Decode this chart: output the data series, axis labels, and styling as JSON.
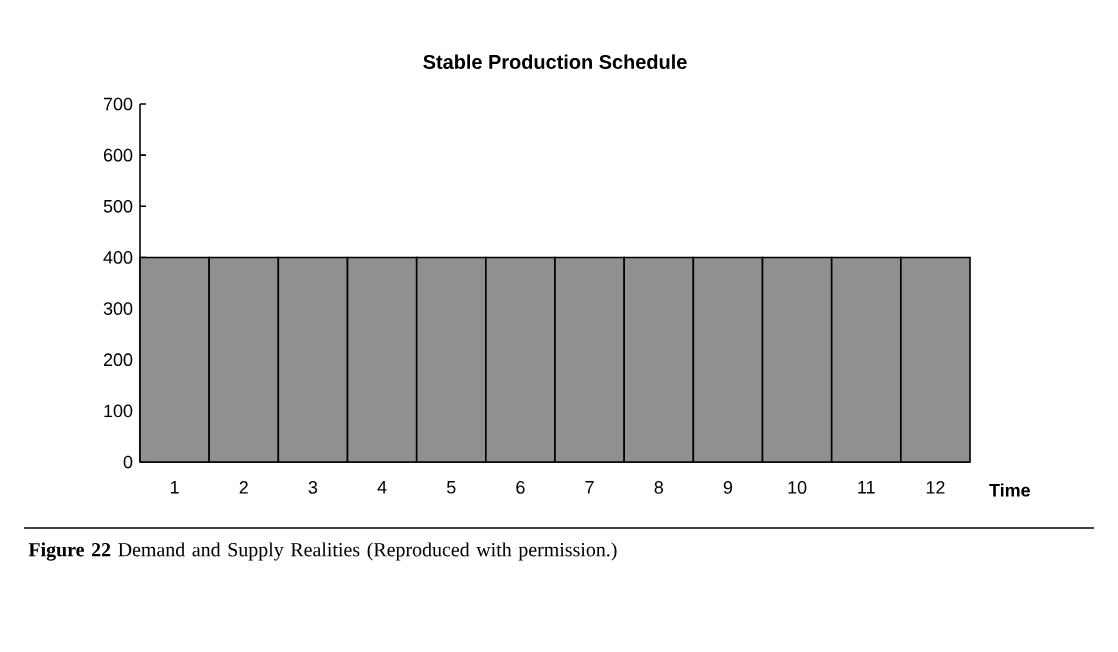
{
  "chart_data": {
    "type": "bar",
    "title": "Stable Production Schedule",
    "xlabel": "Time",
    "categories": [
      "1",
      "2",
      "3",
      "4",
      "5",
      "6",
      "7",
      "8",
      "9",
      "10",
      "11",
      "12"
    ],
    "values": [
      400,
      400,
      400,
      400,
      400,
      400,
      400,
      400,
      400,
      400,
      400,
      400
    ],
    "color": "#909090",
    "ylim": [
      0,
      700
    ],
    "yticks": [
      0,
      100,
      200,
      300,
      400,
      500,
      600,
      700
    ],
    "grid": false,
    "annotations": [
      "**Figure 22**    Demand and Supply Realities (Reproduced with permission.)"
    ]
  }
}
